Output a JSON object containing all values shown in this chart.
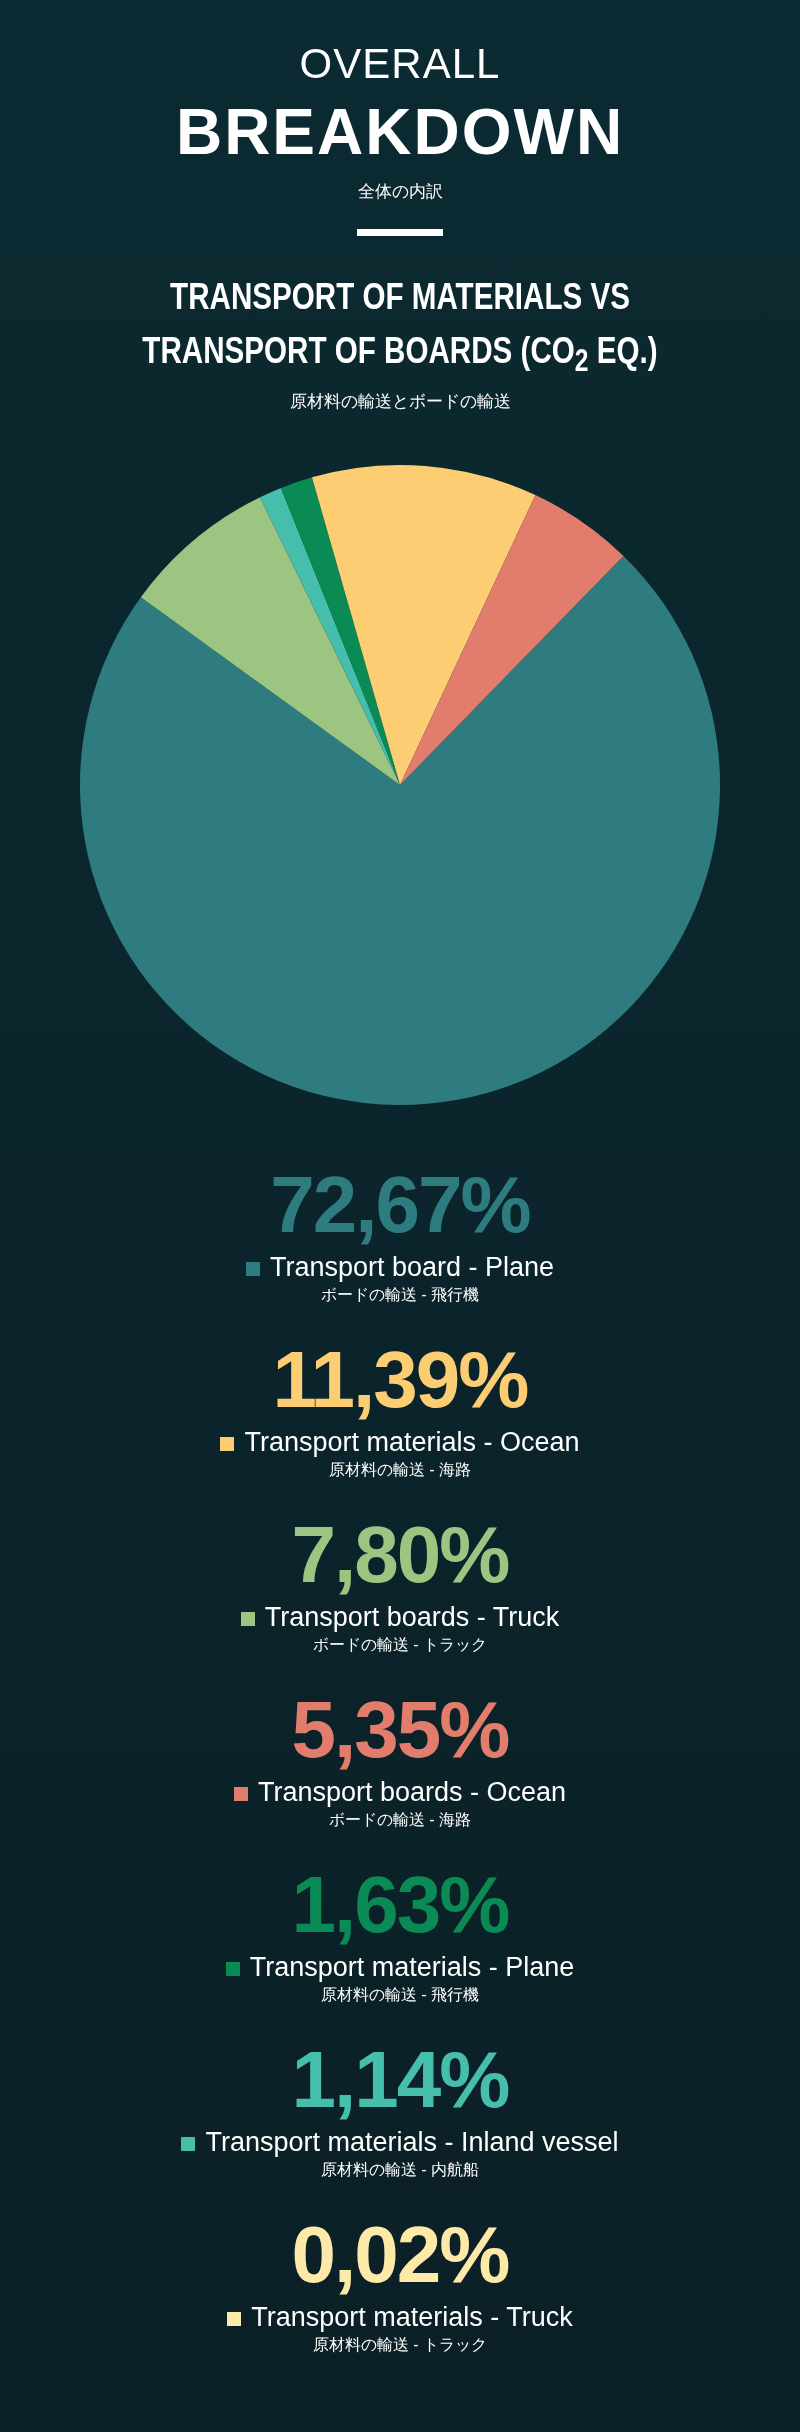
{
  "chart_data": {
    "type": "pie",
    "title": "OVERALL BREAKDOWN",
    "subtitle": "TRANSPORT OF MATERIALS VS TRANSPORT OF BOARDS (CO$_{2}$ EQ.)",
    "annotations": [
      "全体の内訳",
      "原材料の輸送とボードの輸送"
    ],
    "categories": [
      "Transport board - Plane\nボードの輸送 - 飛行機",
      "Transport materials - Ocean\n原材料の輸送 - 海路",
      "Transport boards - Truck\nボードの輸送 - トラック",
      "Transport boards - Ocean\nボードの輸送 - 海路",
      "Transport materials - Plane\n原材料の輸送 - 飛行機",
      "Transport materials - Inland vessel\n原材料の輸送 - 内航船",
      "Transport materials - Truck\n原材料の輸送 - トラック"
    ],
    "values": [
      72.67,
      11.39,
      7.8,
      5.35,
      1.63,
      1.14,
      0.02
    ],
    "value_labels": [
      "72,67%",
      "11,39%",
      "7,80%",
      "5,35%",
      "1,63%",
      "1,14%",
      "0,02%"
    ],
    "legend": "bottom",
    "colors": [
      "#2e7c80",
      "#fdcd74",
      "#9cc581",
      "#e27c6c",
      "#0a8a55",
      "#45bfac",
      "#fde9a8"
    ]
  }
}
